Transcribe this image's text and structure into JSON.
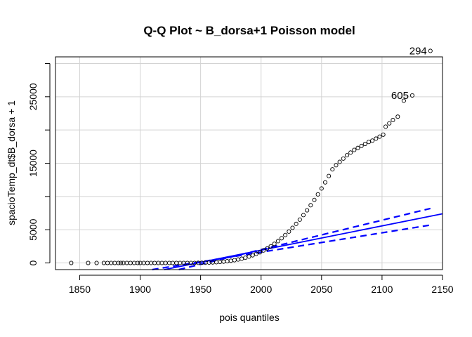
{
  "chart_data": {
    "type": "scatter",
    "title": "Q-Q Plot ~ B_dorsa+1 Poisson model",
    "xlabel": "pois quantiles",
    "ylabel": "spacioTemp_dt$B_dorsa + 1",
    "xlim": [
      1830,
      2150
    ],
    "ylim": [
      -1000,
      31000
    ],
    "x_ticks": [
      1850,
      1900,
      1950,
      2000,
      2050,
      2100,
      2150
    ],
    "x_tick_labels": [
      "1850",
      "1900",
      "1950",
      "2000",
      "2050",
      "2100",
      "2150"
    ],
    "y_ticks": [
      0,
      5000,
      15000,
      25000
    ],
    "y_tick_labels": [
      "0",
      "5000",
      "15000",
      "25000"
    ],
    "grid": true,
    "colors": {
      "points": "#000000",
      "fit_line": "#0000ff",
      "grid": "#d3d3d3"
    },
    "annotations": [
      {
        "text": "294",
        "x": 2140,
        "y": 31900
      },
      {
        "text": "605",
        "x": 2125,
        "y": 25200
      }
    ],
    "points": {
      "x": [
        1843,
        1857,
        1864,
        1870,
        1873,
        1876,
        1879,
        1882,
        1884,
        1886,
        1889,
        1892,
        1895,
        1898,
        1900,
        1903,
        1906,
        1909,
        1912,
        1915,
        1918,
        1921,
        1924,
        1927,
        1930,
        1933,
        1936,
        1939,
        1942,
        1945,
        1948,
        1951,
        1954,
        1957,
        1960,
        1963,
        1966,
        1969,
        1972,
        1975,
        1978,
        1981,
        1984,
        1987,
        1990,
        1993,
        1996,
        1999,
        2002,
        2005,
        2008,
        2011,
        2014,
        2017,
        2020,
        2023,
        2026,
        2029,
        2032,
        2035,
        2038,
        2041,
        2044,
        2047,
        2050,
        2053,
        2056,
        2059,
        2062,
        2065,
        2068,
        2071,
        2074,
        2077,
        2080,
        2083,
        2086,
        2089,
        2092,
        2095,
        2098,
        2101,
        2103,
        2106,
        2109,
        2113,
        2118,
        2125,
        2140
      ],
      "y": [
        0,
        0,
        0,
        0,
        0,
        0,
        0,
        0,
        0,
        0,
        0,
        0,
        0,
        0,
        0,
        0,
        0,
        0,
        0,
        0,
        0,
        0,
        0,
        0,
        0,
        0,
        0,
        0,
        0,
        0,
        20,
        30,
        40,
        60,
        80,
        110,
        150,
        200,
        260,
        330,
        420,
        520,
        640,
        790,
        960,
        1150,
        1370,
        1610,
        1880,
        2180,
        2510,
        2880,
        3280,
        3720,
        4200,
        4720,
        5280,
        5880,
        6520,
        7200,
        7920,
        8680,
        9480,
        10320,
        11200,
        12120,
        13080,
        14080,
        14700,
        15200,
        15700,
        16200,
        16600,
        17000,
        17300,
        17600,
        17900,
        18200,
        18400,
        18700,
        19000,
        19300,
        20500,
        21000,
        21500,
        22000,
        24400,
        25200,
        31900
      ]
    },
    "fit_line": {
      "x": [
        1920,
        2150
      ],
      "y": [
        -1000,
        7400
      ]
    },
    "envelope_upper": {
      "x": [
        1932,
        2140
      ],
      "y": [
        -1000,
        8200
      ]
    },
    "envelope_lower": {
      "x": [
        1910,
        2140
      ],
      "y": [
        -1000,
        5700
      ]
    }
  }
}
